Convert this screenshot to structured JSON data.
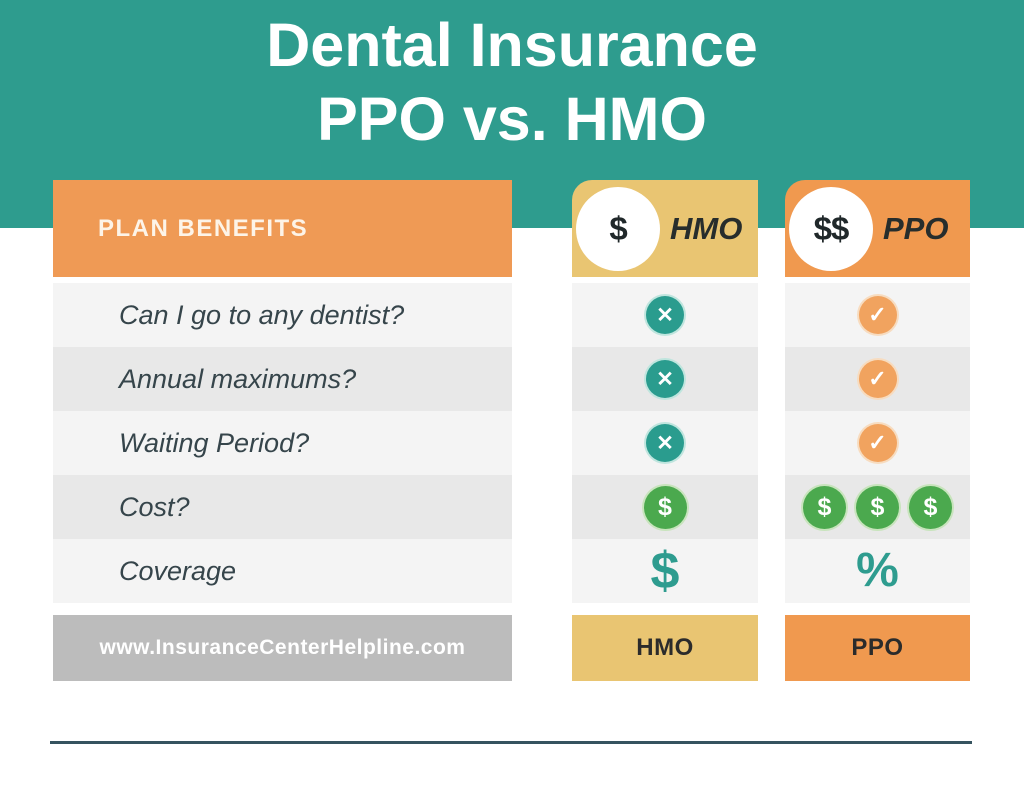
{
  "title": {
    "line1": "Dental Insurance",
    "line2": "PPO vs. HMO"
  },
  "benefits": {
    "header": "PLAN BENEFITS",
    "rows": [
      "Can I go to any dentist?",
      "Annual maximums?",
      "Waiting Period?",
      "Cost?",
      "Coverage"
    ],
    "footer_url": "www.InsuranceCenterHelpline.com"
  },
  "plans": {
    "hmo": {
      "name": "HMO",
      "price_indicator": "$",
      "any_dentist": "no",
      "annual_maximums": "no",
      "waiting_period": "no",
      "cost_dollar_count": 1,
      "coverage_symbol": "$",
      "footer_label": "HMO"
    },
    "ppo": {
      "name": "PPO",
      "price_indicator": "$$",
      "any_dentist": "yes",
      "annual_maximums": "yes",
      "waiting_period": "yes",
      "cost_dollar_count": 3,
      "coverage_symbol": "%",
      "footer_label": "PPO"
    }
  },
  "icons": {
    "cross_glyph": "✕",
    "check_glyph": "✓",
    "dollar_glyph": "$"
  },
  "colors": {
    "teal_banner": "#2e9c8e",
    "orange": "#f0994f",
    "gold": "#e9c572",
    "green_dollar": "#4ba94e",
    "teal_icon": "#2a9c8e",
    "row_light": "#f4f4f4",
    "row_dark": "#e8e8e8",
    "footer_gray": "#bcbcbc",
    "divider": "#35535f"
  }
}
